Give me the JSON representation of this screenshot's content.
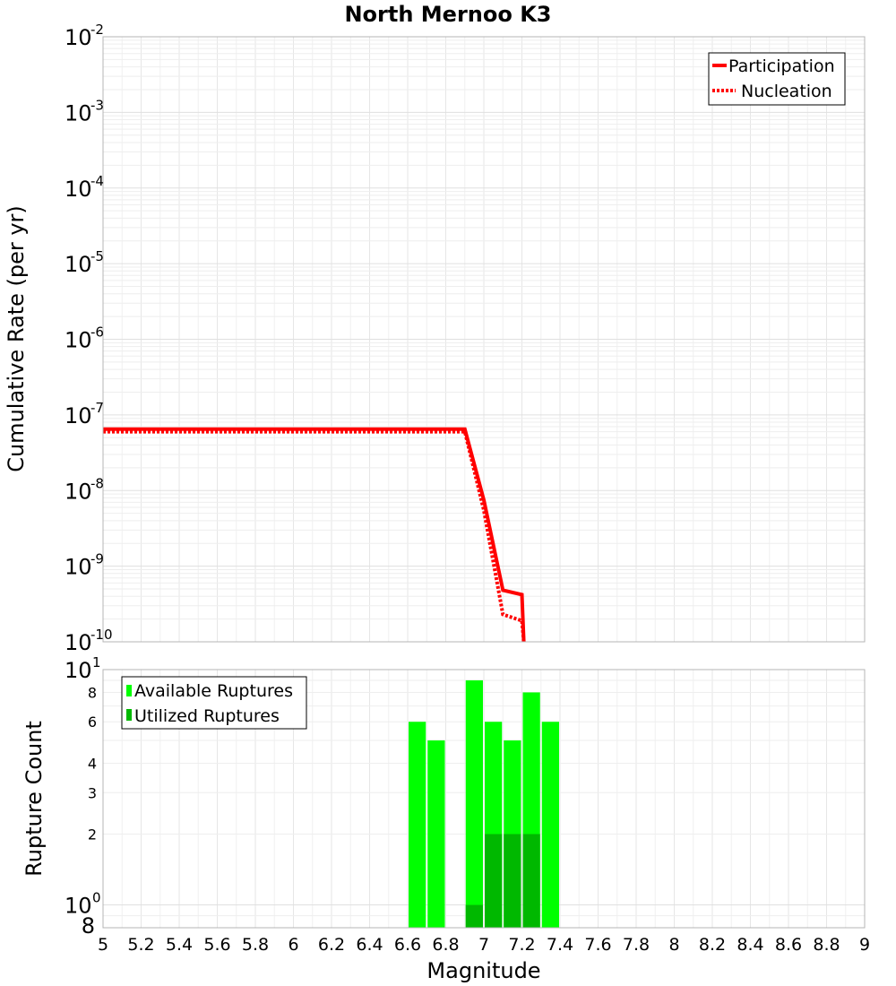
{
  "chart_data": [
    {
      "type": "line",
      "title": "North Mernoo K3",
      "xlabel": "",
      "ylabel": "Cumulative Rate (per yr)",
      "xlim": [
        5,
        9
      ],
      "ylim": [
        1e-10,
        0.01
      ],
      "yscale": "log",
      "y_tick_labels": [
        {
          "base": "10",
          "exp": "-2"
        },
        {
          "base": "10",
          "exp": "-3"
        },
        {
          "base": "10",
          "exp": "-4"
        },
        {
          "base": "10",
          "exp": "-5"
        },
        {
          "base": "10",
          "exp": "-6"
        },
        {
          "base": "10",
          "exp": "-7"
        },
        {
          "base": "10",
          "exp": "-8"
        },
        {
          "base": "10",
          "exp": "-9"
        },
        {
          "base": "10",
          "exp": "-10"
        }
      ],
      "grid": true,
      "legend_position": "top-right",
      "series": [
        {
          "name": "Participation",
          "color": "#ff0000",
          "style": "solid",
          "x": [
            5.0,
            6.9,
            7.0,
            7.1,
            7.2,
            7.21
          ],
          "y": [
            6.5e-08,
            6.5e-08,
            7.5e-09,
            4.8e-10,
            4.2e-10,
            1e-10
          ]
        },
        {
          "name": "Nucleation",
          "color": "#ff0000",
          "style": "dotted",
          "x": [
            5.0,
            6.9,
            7.0,
            7.1,
            7.2,
            7.21
          ],
          "y": [
            6e-08,
            6e-08,
            5.5e-09,
            2.3e-10,
            1.9e-10,
            1e-10
          ]
        }
      ]
    },
    {
      "type": "bar",
      "title": "",
      "xlabel": "Magnitude",
      "ylabel": "Rupture Count",
      "xlim": [
        5,
        9
      ],
      "ylim": [
        0.8,
        10
      ],
      "yscale": "log",
      "x_tick_labels": [
        "5",
        "5.2",
        "5.4",
        "5.6",
        "5.8",
        "6",
        "6.2",
        "6.4",
        "6.6",
        "6.8",
        "7",
        "7.2",
        "7.4",
        "7.6",
        "7.8",
        "8",
        "8.2",
        "8.4",
        "8.6",
        "8.8",
        "9"
      ],
      "y_major_tick_labels": [
        {
          "value": 10,
          "base": "10",
          "exp": "1"
        },
        {
          "value": 1,
          "base": "10",
          "exp": "0"
        }
      ],
      "y_minor_tick_labels": [
        "8",
        "6",
        "4",
        "3",
        "2",
        "8"
      ],
      "grid": true,
      "legend_position": "top-left",
      "bin_width": 0.1,
      "categories": [
        6.65,
        6.75,
        6.95,
        7.05,
        7.15,
        7.25,
        7.35
      ],
      "series": [
        {
          "name": "Available Ruptures",
          "color": "#00ff00",
          "values": [
            6,
            5,
            9,
            6,
            5,
            8,
            6
          ]
        },
        {
          "name": "Utilized Ruptures",
          "color": "#00b800",
          "values": [
            0,
            0,
            1,
            2,
            2,
            2,
            0
          ]
        }
      ]
    }
  ]
}
